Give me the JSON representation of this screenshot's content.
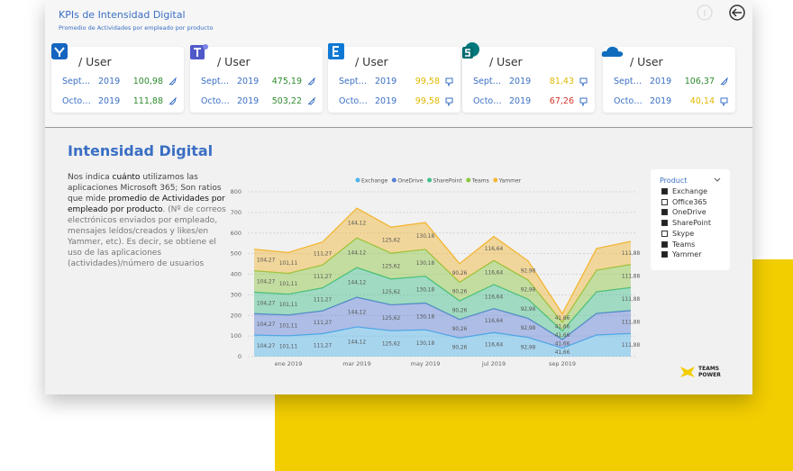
{
  "header": {
    "title": "KPIs de Intensidad Digital",
    "subtitle": "Promedio de Actividades por empleado por producto"
  },
  "cards": [
    {
      "label": "/ User",
      "rows": [
        {
          "month": "Sept…",
          "year": "2019",
          "value": "100,98",
          "color": "#2e8b2e"
        },
        {
          "month": "Octo…",
          "year": "2019",
          "value": "111,88",
          "color": "#2e8b2e"
        }
      ]
    },
    {
      "label": "/ User",
      "rows": [
        {
          "month": "Sept…",
          "year": "2019",
          "value": "475,19",
          "color": "#2e8b2e"
        },
        {
          "month": "Octo…",
          "year": "2019",
          "value": "503,22",
          "color": "#2e8b2e"
        }
      ]
    },
    {
      "label": "/ User",
      "rows": [
        {
          "month": "Sept…",
          "year": "2019",
          "value": "99,58",
          "color": "#e0b800"
        },
        {
          "month": "Octo…",
          "year": "2019",
          "value": "99,58",
          "color": "#e0b800"
        }
      ]
    },
    {
      "label": "/ User",
      "rows": [
        {
          "month": "Sept…",
          "year": "2019",
          "value": "81,43",
          "color": "#e0b800"
        },
        {
          "month": "Octo…",
          "year": "2019",
          "value": "67,26",
          "color": "#d9342b"
        }
      ]
    },
    {
      "label": "/ User",
      "rows": [
        {
          "month": "Sept…",
          "year": "2019",
          "value": "106,37",
          "color": "#2e8b2e"
        },
        {
          "month": "Octo…",
          "year": "2019",
          "value": "40,14",
          "color": "#e0b800"
        }
      ]
    }
  ],
  "section": {
    "title": "Intensidad Digital",
    "description": [
      {
        "text": "Nos indica ",
        "bold": false
      },
      {
        "text": "cuánto",
        "bold": true
      },
      {
        "text": " utilizamos las aplicaciones Microsoft 365; Son ratios que mide ",
        "bold": false
      },
      {
        "text": "promedio de Actividades por empleado por producto",
        "bold": true
      },
      {
        "text": ". (Nº de correos electrónicos enviados por empleado, mensajes leídos/creados y likes/en Yammer, etc). Es decir, se obtiene el uso de las aplicaciones (actividades)/número de usuarios",
        "bold": false
      }
    ]
  },
  "chart_data": {
    "type": "stacked_area",
    "categories": [
      null,
      "ene 2019",
      null,
      "mar 2019",
      null,
      "may 2019",
      null,
      "jul 2019",
      null,
      "sep 2019",
      null,
      null
    ],
    "ylim": [
      0,
      800
    ],
    "yticks": [
      0,
      100,
      200,
      300,
      400,
      500,
      600,
      700,
      800
    ],
    "grid": true,
    "series": [
      {
        "name": "Exchange",
        "color": "#4fb3ea",
        "values": [
          104.27,
          101.11,
          111.27,
          144.12,
          125.62,
          130.18,
          90.26,
          116.64,
          92.98,
          41.66,
          105,
          111.88
        ],
        "value_labels": [
          "104,27",
          "101,11",
          "111,27",
          "144,12",
          "125,62",
          "130,18",
          "90,26",
          "116,64",
          "92,98",
          "41,66",
          null,
          "111,88"
        ]
      },
      {
        "name": "OneDrive",
        "color": "#5a7fd6",
        "values": [
          104.27,
          101.11,
          111.27,
          144.12,
          125.62,
          130.18,
          90.26,
          116.64,
          92.98,
          41.66,
          105,
          111.88
        ],
        "value_labels": [
          "104,27",
          "101,11",
          "111,27",
          "144,12",
          "125,62",
          "130,18",
          "90,26",
          "116,64",
          "92,98",
          "41,66",
          null,
          "111,88"
        ]
      },
      {
        "name": "SharePoint",
        "color": "#3fbf8a",
        "values": [
          104.27,
          101.11,
          111.27,
          144.12,
          125.62,
          130.18,
          90.26,
          116.64,
          92.98,
          41.66,
          105,
          111.88
        ],
        "value_labels": [
          "104,27",
          "101,11",
          "111,27",
          "144,12",
          "125,62",
          "130,18",
          "90,26",
          "116,64",
          "92,98",
          "41,66",
          null,
          "111,88"
        ]
      },
      {
        "name": "Teams",
        "color": "#8cc63f",
        "values": [
          104.27,
          101.11,
          111.27,
          144.12,
          125.62,
          130.18,
          90.26,
          116.64,
          92.98,
          41.66,
          105,
          111.88
        ],
        "value_labels": [
          "104,27",
          "101,11",
          "111,27",
          "144,12",
          "125,62",
          "130,18",
          "90,26",
          "116,64",
          "92,98",
          "41,66",
          null,
          "111,88"
        ]
      },
      {
        "name": "Yammer",
        "color": "#f2b632",
        "values": [
          104.27,
          101.11,
          111.27,
          144.12,
          125.62,
          130.18,
          90.26,
          116.64,
          92.98,
          41.66,
          105,
          111.88
        ],
        "value_labels": [
          "104,27",
          "101,11",
          "111,27",
          "144,12",
          "125,62",
          "130,18",
          "90,26",
          "116,64",
          "92,98",
          "41,66",
          null,
          "111,88"
        ]
      }
    ]
  },
  "filter": {
    "title": "Product",
    "items": [
      {
        "label": "Exchange",
        "checked": true
      },
      {
        "label": "Office365",
        "checked": false
      },
      {
        "label": "OneDrive",
        "checked": true
      },
      {
        "label": "SharePoint",
        "checked": true
      },
      {
        "label": "Skype",
        "checked": false
      },
      {
        "label": "Teams",
        "checked": true
      },
      {
        "label": "Yammer",
        "checked": true
      }
    ]
  },
  "logo": {
    "line1": "TEAMS",
    "line2": "POWER"
  }
}
